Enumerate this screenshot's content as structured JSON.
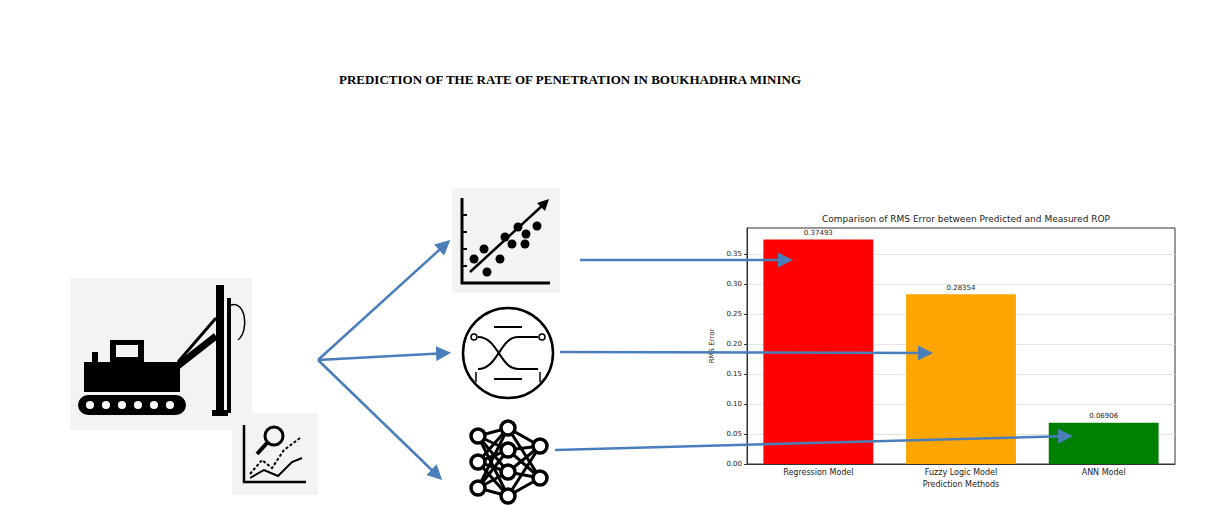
{
  "title": "PREDICTION OF THE RATE OF PENETRATION IN BOUKHADHRA MINING",
  "chart_data": {
    "type": "bar",
    "title": "Comparison of RMS Error between Predicted and Measured ROP",
    "x_label": "Prediction Methods",
    "y_label": "RMS Error",
    "categories": [
      "Regression Model",
      "Fuzzy Logic Model",
      "ANN Model"
    ],
    "values": [
      0.37493,
      0.28354,
      0.06906
    ],
    "colors": [
      "#ff0000",
      "#ffa500",
      "#008000"
    ],
    "ylim": [
      0,
      0.394
    ],
    "yticks": [
      {
        "value": 0,
        "label": "0.00"
      },
      {
        "value": 0.05,
        "label": "0.05"
      },
      {
        "value": 0.1,
        "label": "0.10"
      },
      {
        "value": 0.15,
        "label": "0.15"
      },
      {
        "value": 0.2,
        "label": "0.20"
      },
      {
        "value": 0.25,
        "label": "0.25"
      },
      {
        "value": 0.3,
        "label": "0.30"
      },
      {
        "value": 0.35,
        "label": "0.35"
      }
    ],
    "grid": true,
    "data_labels": true
  }
}
